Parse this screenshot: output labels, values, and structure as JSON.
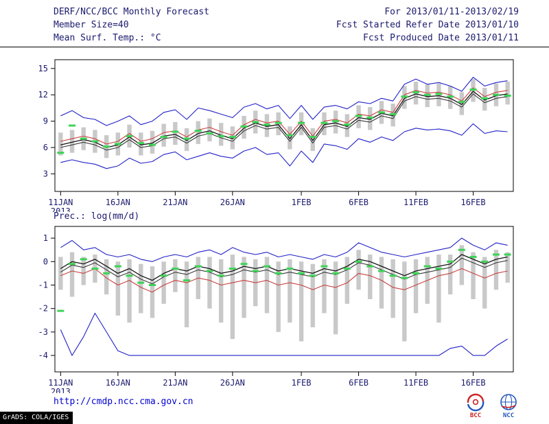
{
  "header": {
    "left": [
      "DERF/NCC/BCC Monthly Forecast",
      "Member Size=40",
      "Mean Surf. Temp.: °C"
    ],
    "right": [
      "For 2013/01/11-2013/02/19",
      "Fcst Started Refer Date 2013/01/10",
      "Fcst Produced Date 2013/01/11"
    ]
  },
  "footer": {
    "url": "http://cmdp.ncc.cma.gov.cn",
    "credit": "GrADS: COLA/IGES",
    "logos": [
      {
        "label": "BCC"
      },
      {
        "label": "NCC"
      }
    ]
  },
  "colors": {
    "axis": "#000000",
    "text": "#1a1a6e",
    "blue": "#2020c8",
    "red": "#c84040",
    "black": "#141414",
    "black2": "#3a3a3a",
    "green": "#3cd455",
    "bar_gray": "#c9c9c9",
    "url_blue": "#0000d0"
  },
  "chart_data": [
    {
      "type": "line",
      "title": "Mean Surf. Temp.: °C",
      "x_start": "2013-01-11",
      "x_end": "2013-02-19",
      "x_tick_positions": [
        0,
        5,
        10,
        15,
        21,
        26,
        31,
        36
      ],
      "x_tick_labels": [
        "11JAN",
        "16JAN",
        "21JAN",
        "26JAN",
        "1FEB",
        "6FEB",
        "11FEB",
        "16FEB"
      ],
      "x_sub_label": "2013",
      "ylim": [
        1,
        16
      ],
      "yticks": [
        3,
        6,
        9,
        12,
        15
      ],
      "grid": false,
      "legend": false,
      "bars": {
        "name": "ensemble-spread",
        "low": [
          5.1,
          5.4,
          5.7,
          5.4,
          4.8,
          5.1,
          6.0,
          5.1,
          5.3,
          6.1,
          6.3,
          5.6,
          6.4,
          6.7,
          6.2,
          5.8,
          7.0,
          7.6,
          7.2,
          7.4,
          5.8,
          7.4,
          5.6,
          7.4,
          7.6,
          7.2,
          8.2,
          8.0,
          8.7,
          8.4,
          10.4,
          10.9,
          10.6,
          10.7,
          10.4,
          9.7,
          11.2,
          10.2,
          10.7,
          10.9
        ],
        "high": [
          7.7,
          8.0,
          8.3,
          8.0,
          7.4,
          7.7,
          8.6,
          7.7,
          7.9,
          8.7,
          8.9,
          8.2,
          9.0,
          9.3,
          8.8,
          8.4,
          9.6,
          10.2,
          9.8,
          10.0,
          8.4,
          10.0,
          8.2,
          10.0,
          10.2,
          9.8,
          10.8,
          10.6,
          11.3,
          11.0,
          13.0,
          13.5,
          13.2,
          13.3,
          13.0,
          12.3,
          13.8,
          12.8,
          13.3,
          13.5
        ]
      },
      "series": [
        {
          "name": "ensemble-max",
          "color": "blue",
          "width": 1.1,
          "values": [
            9.6,
            10.2,
            9.4,
            9.2,
            8.5,
            9.0,
            9.6,
            8.6,
            9.0,
            10.0,
            10.3,
            9.2,
            10.5,
            10.2,
            9.8,
            9.4,
            10.6,
            11.0,
            10.4,
            10.8,
            9.3,
            10.8,
            9.2,
            10.6,
            10.8,
            10.4,
            11.2,
            11.0,
            11.6,
            11.3,
            13.2,
            13.8,
            13.2,
            13.4,
            13.0,
            12.4,
            14.0,
            13.0,
            13.4,
            13.6
          ]
        },
        {
          "name": "ensemble-min",
          "color": "blue",
          "width": 1.1,
          "values": [
            4.3,
            4.6,
            4.3,
            4.1,
            3.6,
            3.9,
            4.8,
            4.2,
            4.4,
            5.2,
            5.5,
            4.6,
            5.0,
            5.4,
            5.0,
            4.8,
            5.6,
            6.0,
            5.2,
            5.4,
            3.9,
            5.6,
            4.3,
            6.4,
            6.2,
            5.8,
            7.0,
            6.6,
            7.2,
            6.8,
            7.8,
            8.2,
            8.0,
            8.1,
            7.9,
            7.4,
            8.7,
            7.6,
            7.9,
            7.8
          ]
        },
        {
          "name": "control-run",
          "color": "red",
          "width": 1.1,
          "values": [
            6.7,
            7.0,
            7.3,
            7.0,
            6.4,
            6.7,
            7.6,
            6.7,
            7.0,
            7.7,
            7.9,
            7.2,
            8.0,
            8.3,
            7.8,
            7.4,
            8.6,
            9.2,
            8.8,
            9.0,
            7.5,
            9.0,
            7.3,
            9.0,
            9.2,
            8.8,
            9.8,
            9.6,
            10.3,
            10.0,
            12.0,
            12.5,
            12.2,
            12.3,
            12.0,
            11.3,
            12.8,
            11.8,
            12.3,
            12.5
          ]
        },
        {
          "name": "ensemble-mean",
          "color": "black",
          "width": 1.3,
          "values": [
            6.3,
            6.6,
            6.9,
            6.6,
            6.0,
            6.3,
            7.2,
            6.3,
            6.5,
            7.3,
            7.5,
            6.8,
            7.6,
            7.9,
            7.4,
            7.0,
            8.2,
            8.8,
            8.4,
            8.6,
            7.0,
            8.6,
            6.8,
            8.6,
            8.8,
            8.4,
            9.4,
            9.2,
            9.9,
            9.6,
            11.6,
            12.1,
            11.8,
            11.9,
            11.6,
            10.9,
            12.4,
            11.4,
            11.9,
            12.1
          ]
        },
        {
          "name": "ensemble-median",
          "color": "black2",
          "width": 1.1,
          "values": [
            6.0,
            6.3,
            6.6,
            6.3,
            5.7,
            6.0,
            6.9,
            6.0,
            6.2,
            7.0,
            7.2,
            6.5,
            7.3,
            7.6,
            7.1,
            6.7,
            7.9,
            8.5,
            8.1,
            8.3,
            6.7,
            8.3,
            6.5,
            8.3,
            8.5,
            8.1,
            9.1,
            8.9,
            9.6,
            9.3,
            11.3,
            11.8,
            11.5,
            11.6,
            11.3,
            10.6,
            12.1,
            11.1,
            11.6,
            11.8
          ]
        }
      ],
      "markers": {
        "name": "observation-dashes",
        "color": "green",
        "values": [
          5.4,
          8.5,
          7.0,
          6.7,
          6.1,
          6.4,
          7.3,
          6.5,
          6.3,
          7.2,
          7.8,
          7.0,
          7.9,
          7.6,
          7.3,
          7.2,
          8.4,
          8.9,
          8.6,
          8.8,
          7.4,
          8.8,
          7.2,
          8.8,
          9.0,
          8.6,
          9.6,
          9.4,
          10.0,
          9.8,
          11.8,
          12.3,
          12.0,
          12.1,
          11.8,
          11.2,
          12.6,
          11.6,
          12.0,
          11.9
        ]
      }
    },
    {
      "type": "line",
      "title": "Prec.: log(mm/d)",
      "x_start": "2013-01-11",
      "x_end": "2013-02-19",
      "x_tick_positions": [
        0,
        5,
        10,
        15,
        21,
        26,
        31,
        36
      ],
      "x_tick_labels": [
        "11JAN",
        "16JAN",
        "21JAN",
        "26JAN",
        "1FEB",
        "6FEB",
        "11FEB",
        "16FEB"
      ],
      "x_sub_label": "2013",
      "ylim": [
        -4.7,
        1.5
      ],
      "yticks": [
        -4,
        -3,
        -2,
        -1,
        0,
        1
      ],
      "grid": false,
      "legend": false,
      "bars": {
        "name": "ensemble-spread",
        "low": [
          -1.2,
          -1.5,
          -1.0,
          -0.9,
          -1.4,
          -2.3,
          -2.6,
          -2.2,
          -2.4,
          -1.8,
          -1.3,
          -2.8,
          -1.6,
          -2.0,
          -2.6,
          -3.3,
          -2.4,
          -1.9,
          -2.2,
          -3.0,
          -2.6,
          -3.4,
          -2.8,
          -2.2,
          -3.1,
          -1.8,
          -1.2,
          -1.6,
          -2.0,
          -2.4,
          -3.4,
          -2.2,
          -1.8,
          -2.6,
          -1.4,
          -1.0,
          -1.6,
          -2.0,
          -1.2,
          -0.9
        ],
        "high": [
          0.2,
          0.4,
          0.2,
          0.3,
          0.1,
          0.0,
          0.1,
          -0.1,
          -0.2,
          0.0,
          0.1,
          0.0,
          0.2,
          0.2,
          0.1,
          0.3,
          0.2,
          0.1,
          0.2,
          0.0,
          0.1,
          0.0,
          -0.1,
          0.1,
          0.0,
          0.2,
          0.5,
          0.3,
          0.2,
          0.1,
          0.0,
          0.1,
          0.2,
          0.3,
          0.3,
          0.7,
          0.4,
          0.2,
          0.5,
          0.4
        ]
      },
      "series": [
        {
          "name": "ensemble-max",
          "color": "blue",
          "width": 1.1,
          "values": [
            0.6,
            0.9,
            0.5,
            0.6,
            0.3,
            0.2,
            0.3,
            0.1,
            0.0,
            0.2,
            0.3,
            0.2,
            0.4,
            0.5,
            0.3,
            0.6,
            0.4,
            0.3,
            0.4,
            0.2,
            0.3,
            0.2,
            0.1,
            0.3,
            0.2,
            0.4,
            0.8,
            0.6,
            0.4,
            0.3,
            0.2,
            0.3,
            0.4,
            0.5,
            0.6,
            1.0,
            0.7,
            0.5,
            0.8,
            0.7
          ]
        },
        {
          "name": "ensemble-min",
          "color": "blue",
          "width": 1.1,
          "values": [
            -2.9,
            -4.0,
            -3.2,
            -2.2,
            -3.0,
            -3.8,
            -4.0,
            -4.0,
            -4.0,
            -4.0,
            -4.0,
            -4.0,
            -4.0,
            -4.0,
            -4.0,
            -4.0,
            -4.0,
            -4.0,
            -4.0,
            -4.0,
            -4.0,
            -4.0,
            -4.0,
            -4.0,
            -4.0,
            -4.0,
            -4.0,
            -4.0,
            -4.0,
            -4.0,
            -4.0,
            -4.0,
            -4.0,
            -4.0,
            -3.7,
            -3.6,
            -4.0,
            -4.0,
            -3.6,
            -3.3
          ]
        },
        {
          "name": "control-run",
          "color": "red",
          "width": 1.1,
          "values": [
            -0.6,
            -0.4,
            -0.5,
            -0.3,
            -0.7,
            -1.0,
            -0.8,
            -1.1,
            -1.3,
            -1.0,
            -0.8,
            -0.9,
            -0.7,
            -0.8,
            -1.0,
            -0.9,
            -0.8,
            -0.9,
            -0.8,
            -1.0,
            -0.9,
            -1.0,
            -1.2,
            -1.0,
            -1.1,
            -0.9,
            -0.5,
            -0.6,
            -0.8,
            -1.1,
            -1.2,
            -1.0,
            -0.8,
            -0.6,
            -0.5,
            -0.3,
            -0.5,
            -0.7,
            -0.5,
            -0.4
          ]
        },
        {
          "name": "ensemble-mean",
          "color": "black",
          "width": 1.3,
          "values": [
            -0.3,
            0.0,
            -0.1,
            0.1,
            -0.2,
            -0.5,
            -0.3,
            -0.6,
            -0.8,
            -0.5,
            -0.3,
            -0.4,
            -0.2,
            -0.3,
            -0.5,
            -0.4,
            -0.2,
            -0.3,
            -0.2,
            -0.4,
            -0.3,
            -0.4,
            -0.5,
            -0.3,
            -0.4,
            -0.2,
            0.1,
            0.0,
            -0.2,
            -0.4,
            -0.6,
            -0.4,
            -0.3,
            -0.2,
            -0.1,
            0.3,
            0.1,
            -0.1,
            0.1,
            0.2
          ]
        },
        {
          "name": "ensemble-median",
          "color": "black2",
          "width": 1.1,
          "values": [
            -0.45,
            -0.15,
            -0.25,
            -0.05,
            -0.35,
            -0.65,
            -0.45,
            -0.75,
            -0.95,
            -0.65,
            -0.45,
            -0.55,
            -0.35,
            -0.45,
            -0.65,
            -0.55,
            -0.35,
            -0.45,
            -0.35,
            -0.55,
            -0.45,
            -0.55,
            -0.65,
            -0.45,
            -0.55,
            -0.35,
            -0.05,
            -0.15,
            -0.35,
            -0.55,
            -0.75,
            -0.55,
            -0.45,
            -0.35,
            -0.25,
            0.15,
            -0.05,
            -0.25,
            -0.05,
            0.05
          ]
        }
      ],
      "markers": {
        "name": "observation-dashes",
        "color": "green",
        "values": [
          -2.1,
          -0.1,
          0.1,
          -0.3,
          -0.5,
          -0.2,
          -0.6,
          -0.9,
          -1.0,
          -0.6,
          -0.3,
          -0.8,
          -0.2,
          -0.4,
          -0.6,
          -0.3,
          -0.1,
          -0.4,
          -0.2,
          -0.5,
          -0.3,
          -0.5,
          -0.6,
          -0.2,
          -0.5,
          -0.3,
          0.0,
          -0.2,
          -0.4,
          -0.6,
          -0.7,
          -0.5,
          -0.2,
          -0.3,
          0.0,
          0.5,
          0.2,
          0.0,
          0.3,
          0.3
        ]
      }
    }
  ]
}
